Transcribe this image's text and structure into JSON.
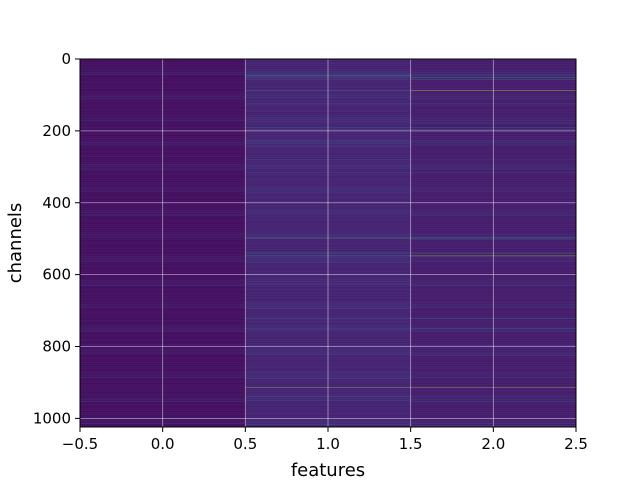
{
  "chart_data": {
    "type": "heatmap",
    "title": "",
    "xlabel": "features",
    "ylabel": "channels",
    "colormap": "viridis",
    "grid": true,
    "xlim": [
      -0.5,
      2.5
    ],
    "ylim": [
      1024,
      0
    ],
    "x_ticks": [
      -0.5,
      0.0,
      0.5,
      1.0,
      1.5,
      2.0,
      2.5
    ],
    "x_tick_labels": [
      "−0.5",
      "0.0",
      "0.5",
      "1.0",
      "1.5",
      "2.0",
      "2.5"
    ],
    "y_ticks": [
      0,
      200,
      400,
      600,
      800,
      1000
    ],
    "y_tick_labels": [
      "0",
      "200",
      "400",
      "600",
      "800",
      "1000"
    ],
    "columns": [
      0,
      1,
      2
    ],
    "channel_count": 1024,
    "value_range": [
      0,
      1
    ],
    "background_level": [
      0.02,
      0.08,
      0.06
    ],
    "bright_channels": [
      {
        "channel": 45,
        "values": [
          0.05,
          0.55,
          0.35
        ]
      },
      {
        "channel": 52,
        "values": [
          0.04,
          0.35,
          0.62
        ]
      },
      {
        "channel": 58,
        "values": [
          0.05,
          0.25,
          0.5
        ]
      },
      {
        "channel": 88,
        "values": [
          0.05,
          0.45,
          0.95
        ]
      },
      {
        "channel": 125,
        "values": [
          0.06,
          0.3,
          0.35
        ]
      },
      {
        "channel": 190,
        "values": [
          0.05,
          0.35,
          0.3
        ]
      },
      {
        "channel": 197,
        "values": [
          0.05,
          0.3,
          0.4
        ]
      },
      {
        "channel": 228,
        "values": [
          0.05,
          0.28,
          0.25
        ]
      },
      {
        "channel": 280,
        "values": [
          0.04,
          0.22,
          0.18
        ]
      },
      {
        "channel": 315,
        "values": [
          0.05,
          0.2,
          0.3
        ]
      },
      {
        "channel": 498,
        "values": [
          0.06,
          0.7,
          0.65
        ]
      },
      {
        "channel": 540,
        "values": [
          0.05,
          0.45,
          0.55
        ]
      },
      {
        "channel": 548,
        "values": [
          0.06,
          0.6,
          0.92
        ]
      },
      {
        "channel": 722,
        "values": [
          0.05,
          0.35,
          0.4
        ]
      },
      {
        "channel": 750,
        "values": [
          0.05,
          0.3,
          0.35
        ]
      },
      {
        "channel": 798,
        "values": [
          0.12,
          0.15,
          0.25
        ]
      },
      {
        "channel": 915,
        "values": [
          0.05,
          0.8,
          0.85
        ]
      },
      {
        "channel": 940,
        "values": [
          0.05,
          0.3,
          0.25
        ]
      }
    ]
  }
}
